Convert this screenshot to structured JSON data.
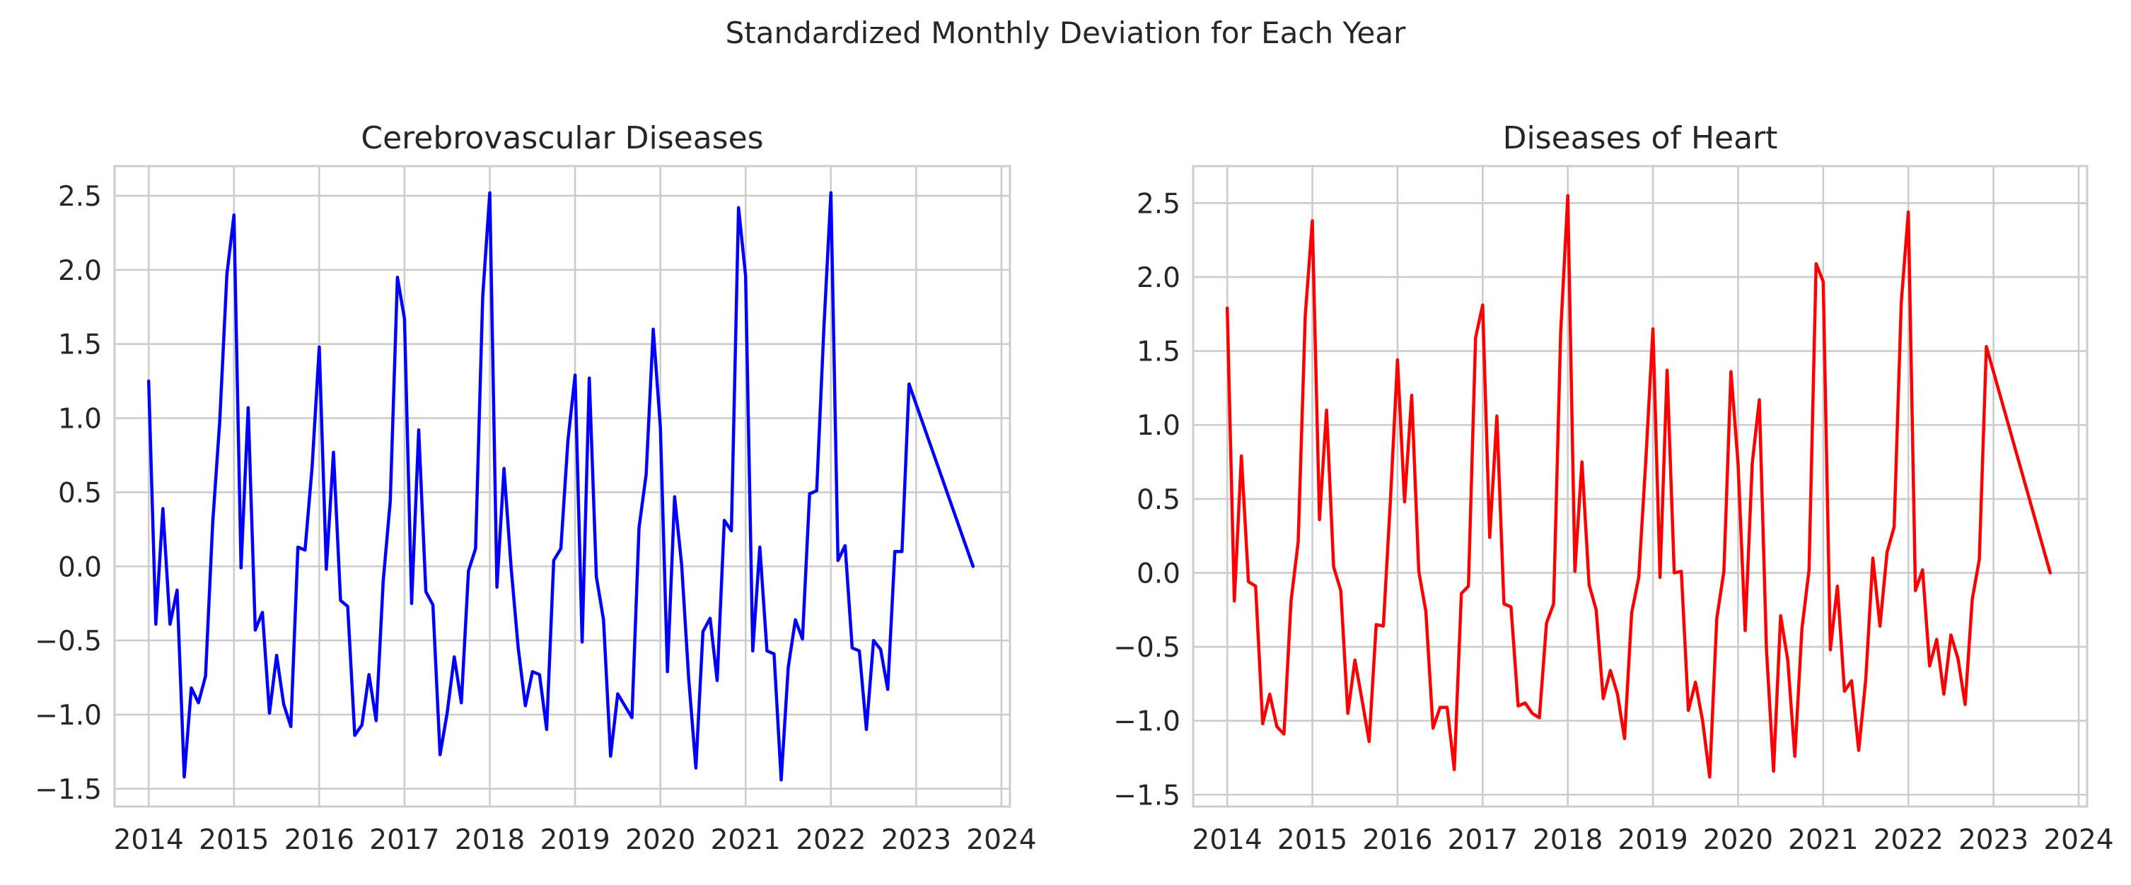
{
  "suptitle": "Standardized Monthly Deviation for Each Year",
  "chart_data": [
    {
      "type": "line",
      "title": "Cerebrovascular Diseases",
      "xlabel": "",
      "ylabel": "",
      "color": "#0000ff",
      "grid": true,
      "xlim": [
        2013.6,
        2024.1
      ],
      "ylim": [
        -1.62,
        2.7
      ],
      "xticks": [
        2014,
        2015,
        2016,
        2017,
        2018,
        2019,
        2020,
        2021,
        2022,
        2023,
        2024
      ],
      "yticks": [
        2.5,
        2.0,
        1.5,
        1.0,
        0.5,
        0.0,
        -0.5,
        -1.0,
        -1.5
      ],
      "ytick_labels": [
        "2.5",
        "2.0",
        "1.5",
        "1.0",
        "0.5",
        "0.0",
        "−0.5",
        "−1.0",
        "−1.5"
      ],
      "x": [
        "2014-01",
        "2014-02",
        "2014-03",
        "2014-04",
        "2014-05",
        "2014-06",
        "2014-07",
        "2014-08",
        "2014-09",
        "2014-10",
        "2014-11",
        "2014-12",
        "2015-01",
        "2015-02",
        "2015-03",
        "2015-04",
        "2015-05",
        "2015-06",
        "2015-07",
        "2015-08",
        "2015-09",
        "2015-10",
        "2015-11",
        "2015-12",
        "2016-01",
        "2016-02",
        "2016-03",
        "2016-04",
        "2016-05",
        "2016-06",
        "2016-07",
        "2016-08",
        "2016-09",
        "2016-10",
        "2016-11",
        "2016-12",
        "2017-01",
        "2017-02",
        "2017-03",
        "2017-04",
        "2017-05",
        "2017-06",
        "2017-07",
        "2017-08",
        "2017-09",
        "2017-10",
        "2017-11",
        "2017-12",
        "2018-01",
        "2018-02",
        "2018-03",
        "2018-04",
        "2018-05",
        "2018-06",
        "2018-07",
        "2018-08",
        "2018-09",
        "2018-10",
        "2018-11",
        "2018-12",
        "2019-01",
        "2019-02",
        "2019-03",
        "2019-04",
        "2019-05",
        "2019-06",
        "2019-07",
        "2019-08",
        "2019-09",
        "2019-10",
        "2019-11",
        "2019-12",
        "2020-01",
        "2020-02",
        "2020-03",
        "2020-04",
        "2020-05",
        "2020-06",
        "2020-07",
        "2020-08",
        "2020-09",
        "2020-10",
        "2020-11",
        "2020-12",
        "2021-01",
        "2021-02",
        "2021-03",
        "2021-04",
        "2021-05",
        "2021-06",
        "2021-07",
        "2021-08",
        "2021-09",
        "2021-10",
        "2021-11",
        "2021-12",
        "2022-01",
        "2022-02",
        "2022-03",
        "2022-04",
        "2022-05",
        "2022-06",
        "2022-07",
        "2022-08",
        "2022-09",
        "2022-10",
        "2022-11",
        "2022-12",
        "2023-09"
      ],
      "values": [
        1.25,
        -0.39,
        0.39,
        -0.39,
        -0.16,
        -1.42,
        -0.82,
        -0.92,
        -0.74,
        0.29,
        0.98,
        1.97,
        2.37,
        -0.01,
        1.07,
        -0.43,
        -0.31,
        -0.99,
        -0.6,
        -0.93,
        -1.08,
        0.13,
        0.11,
        0.67,
        1.48,
        -0.02,
        0.77,
        -0.23,
        -0.27,
        -1.14,
        -1.07,
        -0.73,
        -1.04,
        -0.1,
        0.44,
        1.95,
        1.67,
        -0.25,
        0.92,
        -0.17,
        -0.26,
        -1.27,
        -0.99,
        -0.61,
        -0.92,
        -0.03,
        0.12,
        1.82,
        2.52,
        -0.14,
        0.66,
        -0.01,
        -0.55,
        -0.94,
        -0.71,
        -0.73,
        -1.1,
        0.04,
        0.12,
        0.85,
        1.29,
        -0.51,
        1.27,
        -0.07,
        -0.36,
        -1.28,
        -0.86,
        -0.94,
        -1.02,
        0.26,
        0.62,
        1.6,
        0.94,
        -0.71,
        0.47,
        0.01,
        -0.76,
        -1.36,
        -0.44,
        -0.35,
        -0.77,
        0.31,
        0.24,
        2.42,
        1.96,
        -0.57,
        0.13,
        -0.57,
        -0.59,
        -1.44,
        -0.68,
        -0.36,
        -0.49,
        0.49,
        0.51,
        1.6,
        2.52,
        0.04,
        0.14,
        -0.55,
        -0.57,
        -1.1,
        -0.5,
        -0.56,
        -0.83,
        0.1,
        0.1,
        1.23,
        0.0
      ]
    },
    {
      "type": "line",
      "title": "Diseases of Heart",
      "xlabel": "",
      "ylabel": "",
      "color": "#ff0000",
      "grid": true,
      "xlim": [
        2013.6,
        2024.1
      ],
      "ylim": [
        -1.58,
        2.75
      ],
      "xticks": [
        2014,
        2015,
        2016,
        2017,
        2018,
        2019,
        2020,
        2021,
        2022,
        2023,
        2024
      ],
      "yticks": [
        2.5,
        2.0,
        1.5,
        1.0,
        0.5,
        0.0,
        -0.5,
        -1.0,
        -1.5
      ],
      "ytick_labels": [
        "2.5",
        "2.0",
        "1.5",
        "1.0",
        "0.5",
        "0.0",
        "−0.5",
        "−1.0",
        "−1.5"
      ],
      "x": [
        "2014-01",
        "2014-02",
        "2014-03",
        "2014-04",
        "2014-05",
        "2014-06",
        "2014-07",
        "2014-08",
        "2014-09",
        "2014-10",
        "2014-11",
        "2014-12",
        "2015-01",
        "2015-02",
        "2015-03",
        "2015-04",
        "2015-05",
        "2015-06",
        "2015-07",
        "2015-08",
        "2015-09",
        "2015-10",
        "2015-11",
        "2015-12",
        "2016-01",
        "2016-02",
        "2016-03",
        "2016-04",
        "2016-05",
        "2016-06",
        "2016-07",
        "2016-08",
        "2016-09",
        "2016-10",
        "2016-11",
        "2016-12",
        "2017-01",
        "2017-02",
        "2017-03",
        "2017-04",
        "2017-05",
        "2017-06",
        "2017-07",
        "2017-08",
        "2017-09",
        "2017-10",
        "2017-11",
        "2017-12",
        "2018-01",
        "2018-02",
        "2018-03",
        "2018-04",
        "2018-05",
        "2018-06",
        "2018-07",
        "2018-08",
        "2018-09",
        "2018-10",
        "2018-11",
        "2018-12",
        "2019-01",
        "2019-02",
        "2019-03",
        "2019-04",
        "2019-05",
        "2019-06",
        "2019-07",
        "2019-08",
        "2019-09",
        "2019-10",
        "2019-11",
        "2019-12",
        "2020-01",
        "2020-02",
        "2020-03",
        "2020-04",
        "2020-05",
        "2020-06",
        "2020-07",
        "2020-08",
        "2020-09",
        "2020-10",
        "2020-11",
        "2020-12",
        "2021-01",
        "2021-02",
        "2021-03",
        "2021-04",
        "2021-05",
        "2021-06",
        "2021-07",
        "2021-08",
        "2021-09",
        "2021-10",
        "2021-11",
        "2021-12",
        "2022-01",
        "2022-02",
        "2022-03",
        "2022-04",
        "2022-05",
        "2022-06",
        "2022-07",
        "2022-08",
        "2022-09",
        "2022-10",
        "2022-11",
        "2022-12",
        "2023-09"
      ],
      "values": [
        1.79,
        -0.19,
        0.79,
        -0.06,
        -0.09,
        -1.02,
        -0.82,
        -1.04,
        -1.09,
        -0.19,
        0.21,
        1.74,
        2.38,
        0.36,
        1.1,
        0.04,
        -0.12,
        -0.95,
        -0.59,
        -0.86,
        -1.14,
        -0.35,
        -0.36,
        0.49,
        1.44,
        0.48,
        1.2,
        0.01,
        -0.26,
        -1.05,
        -0.91,
        -0.91,
        -1.33,
        -0.14,
        -0.09,
        1.59,
        1.81,
        0.24,
        1.06,
        -0.21,
        -0.23,
        -0.9,
        -0.88,
        -0.95,
        -0.98,
        -0.34,
        -0.21,
        1.62,
        2.55,
        0.01,
        0.75,
        -0.08,
        -0.25,
        -0.85,
        -0.66,
        -0.82,
        -1.12,
        -0.27,
        -0.03,
        0.76,
        1.65,
        -0.03,
        1.37,
        0.0,
        0.01,
        -0.93,
        -0.74,
        -1.0,
        -1.38,
        -0.31,
        0.01,
        1.36,
        0.74,
        -0.39,
        0.74,
        1.17,
        -0.52,
        -1.34,
        -0.29,
        -0.59,
        -1.24,
        -0.38,
        0.02,
        2.09,
        1.97,
        -0.52,
        -0.09,
        -0.8,
        -0.73,
        -1.2,
        -0.72,
        0.1,
        -0.36,
        0.14,
        0.31,
        1.83,
        2.44,
        -0.12,
        0.02,
        -0.63,
        -0.45,
        -0.82,
        -0.42,
        -0.58,
        -0.89,
        -0.18,
        0.09,
        1.53,
        0.0
      ]
    }
  ]
}
